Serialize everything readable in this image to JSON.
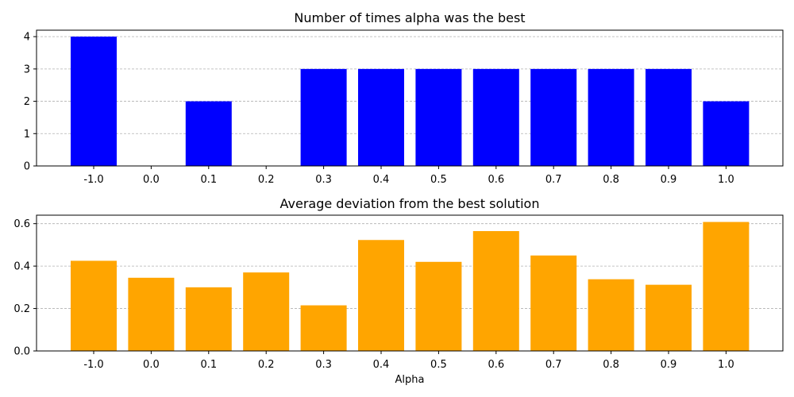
{
  "chart_data": [
    {
      "type": "bar",
      "title": "Number of times alpha was the best",
      "xlabel": "",
      "ylabel": "",
      "categories": [
        "-1.0",
        "0.0",
        "0.1",
        "0.2",
        "0.3",
        "0.4",
        "0.5",
        "0.6",
        "0.7",
        "0.8",
        "0.9",
        "1.0"
      ],
      "values": [
        4,
        0,
        2,
        0,
        3,
        3,
        3,
        3,
        3,
        3,
        3,
        2
      ],
      "color": "#0000ff",
      "ylim": [
        0,
        4.2
      ],
      "yticks": [
        0,
        1,
        2,
        3,
        4
      ],
      "ytick_labels": [
        "0",
        "1",
        "2",
        "3",
        "4"
      ],
      "grid": "y, dashed"
    },
    {
      "type": "bar",
      "title": "Average deviation from the best solution",
      "xlabel": "Alpha",
      "ylabel": "",
      "categories": [
        "-1.0",
        "0.0",
        "0.1",
        "0.2",
        "0.3",
        "0.4",
        "0.5",
        "0.6",
        "0.7",
        "0.8",
        "0.9",
        "1.0"
      ],
      "values": [
        0.425,
        0.345,
        0.3,
        0.37,
        0.215,
        0.523,
        0.42,
        0.565,
        0.45,
        0.338,
        0.312,
        0.608
      ],
      "color": "#ffa500",
      "ylim": [
        0,
        0.64
      ],
      "yticks": [
        0,
        0.2,
        0.4,
        0.6
      ],
      "ytick_labels": [
        "0.0",
        "0.2",
        "0.4",
        "0.6"
      ],
      "grid": "y, dashed"
    }
  ]
}
